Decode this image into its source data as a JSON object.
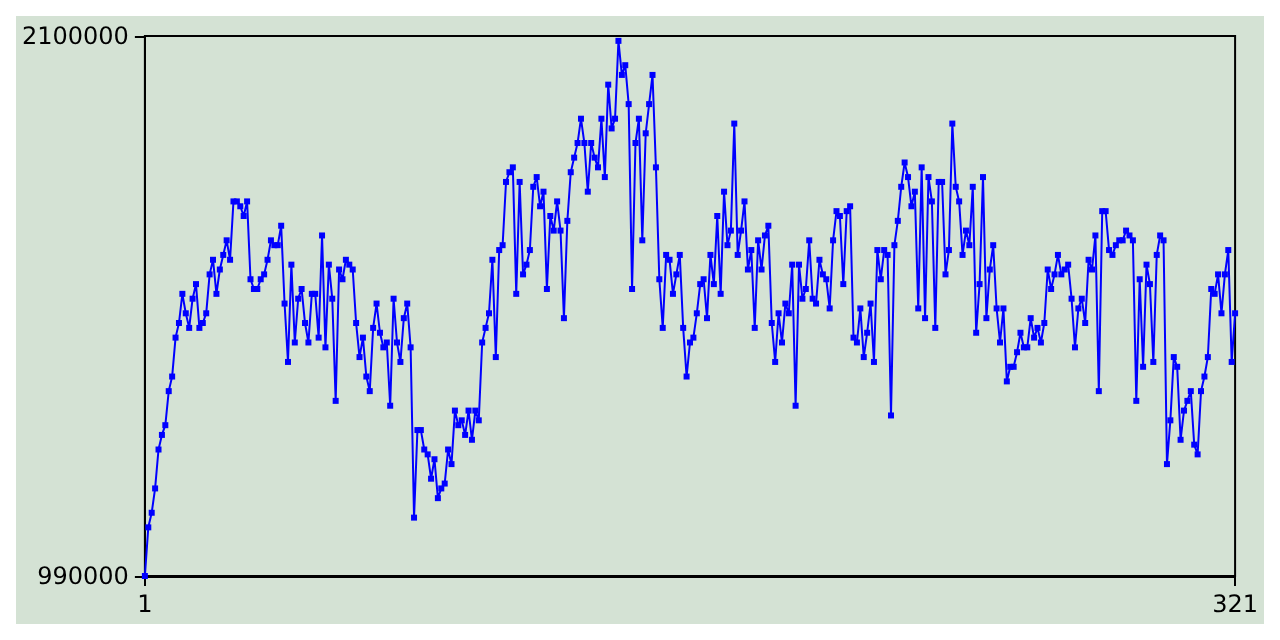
{
  "chart_data": {
    "type": "line",
    "xlim": [
      1,
      321
    ],
    "xticks": [
      1,
      321
    ],
    "ylim": [
      990000,
      2100000
    ],
    "yticks": [
      990000,
      2100000
    ],
    "grid": false,
    "marker": "square",
    "line_style": "solid",
    "series": [
      {
        "color": "#0000ff",
        "x": [
          1,
          2,
          3,
          4,
          5,
          6,
          7,
          8,
          9,
          10,
          11,
          12,
          13,
          14,
          15,
          16,
          17,
          18,
          19,
          20,
          21,
          22,
          23,
          24,
          25,
          26,
          27,
          28,
          29,
          30,
          31,
          32,
          33,
          34,
          35,
          36,
          37,
          38,
          39,
          40,
          41,
          42,
          43,
          44,
          45,
          46,
          47,
          48,
          49,
          50,
          51,
          52,
          53,
          54,
          55,
          56,
          57,
          58,
          59,
          60,
          61,
          62,
          63,
          64,
          65,
          66,
          67,
          68,
          69,
          70,
          71,
          72,
          73,
          74,
          75,
          76,
          77,
          78,
          79,
          80,
          81,
          82,
          83,
          84,
          85,
          86,
          87,
          88,
          89,
          90,
          91,
          92,
          93,
          94,
          95,
          96,
          97,
          98,
          99,
          100,
          101,
          102,
          103,
          104,
          105,
          106,
          107,
          108,
          109,
          110,
          111,
          112,
          113,
          114,
          115,
          116,
          117,
          118,
          119,
          120,
          121,
          122,
          123,
          124,
          125,
          126,
          127,
          128,
          129,
          130,
          131,
          132,
          133,
          134,
          135,
          136,
          137,
          138,
          139,
          140,
          141,
          142,
          143,
          144,
          145,
          146,
          147,
          148,
          149,
          150,
          151,
          152,
          153,
          154,
          155,
          156,
          157,
          158,
          159,
          160,
          161,
          162,
          163,
          164,
          165,
          166,
          167,
          168,
          169,
          170,
          171,
          172,
          173,
          174,
          175,
          176,
          177,
          178,
          179,
          180,
          181,
          182,
          183,
          184,
          185,
          186,
          187,
          188,
          189,
          190,
          191,
          192,
          193,
          194,
          195,
          196,
          197,
          198,
          199,
          200,
          201,
          202,
          203,
          204,
          205,
          206,
          207,
          208,
          209,
          210,
          211,
          212,
          213,
          214,
          215,
          216,
          217,
          218,
          219,
          220,
          221,
          222,
          223,
          224,
          225,
          226,
          227,
          228,
          229,
          230,
          231,
          232,
          233,
          234,
          235,
          236,
          237,
          238,
          239,
          240,
          241,
          242,
          243,
          244,
          245,
          246,
          247,
          248,
          249,
          250,
          251,
          252,
          253,
          254,
          255,
          256,
          257,
          258,
          259,
          260,
          261,
          262,
          263,
          264,
          265,
          266,
          267,
          268,
          269,
          270,
          271,
          272,
          273,
          274,
          275,
          276,
          277,
          278,
          279,
          280,
          281,
          282,
          283,
          284,
          285,
          286,
          287,
          288,
          289,
          290,
          291,
          292,
          293,
          294,
          295,
          296,
          297,
          298,
          299,
          300,
          301,
          302,
          303,
          304,
          305,
          306,
          307,
          308,
          309,
          310,
          311,
          312,
          313,
          314,
          315,
          316,
          317,
          318,
          319,
          320,
          321
        ],
        "values": [
          990000,
          1090000,
          1120000,
          1170000,
          1250000,
          1280000,
          1300000,
          1370000,
          1400000,
          1480000,
          1510000,
          1570000,
          1530000,
          1500000,
          1560000,
          1590000,
          1500000,
          1510000,
          1530000,
          1610000,
          1640000,
          1570000,
          1620000,
          1650000,
          1680000,
          1640000,
          1760000,
          1760000,
          1750000,
          1730000,
          1760000,
          1600000,
          1580000,
          1580000,
          1600000,
          1610000,
          1640000,
          1680000,
          1670000,
          1670000,
          1710000,
          1550000,
          1430000,
          1630000,
          1470000,
          1560000,
          1580000,
          1510000,
          1470000,
          1570000,
          1570000,
          1480000,
          1690000,
          1460000,
          1630000,
          1560000,
          1350000,
          1620000,
          1600000,
          1640000,
          1630000,
          1620000,
          1510000,
          1440000,
          1480000,
          1400000,
          1370000,
          1500000,
          1550000,
          1490000,
          1460000,
          1470000,
          1340000,
          1560000,
          1470000,
          1430000,
          1520000,
          1550000,
          1460000,
          1110000,
          1290000,
          1290000,
          1250000,
          1240000,
          1190000,
          1230000,
          1150000,
          1170000,
          1180000,
          1250000,
          1220000,
          1330000,
          1300000,
          1310000,
          1280000,
          1330000,
          1270000,
          1330000,
          1310000,
          1470000,
          1500000,
          1530000,
          1640000,
          1440000,
          1660000,
          1670000,
          1800000,
          1820000,
          1830000,
          1570000,
          1800000,
          1610000,
          1630000,
          1660000,
          1790000,
          1810000,
          1750000,
          1780000,
          1580000,
          1730000,
          1700000,
          1760000,
          1700000,
          1520000,
          1720000,
          1820000,
          1850000,
          1880000,
          1930000,
          1880000,
          1780000,
          1880000,
          1850000,
          1830000,
          1930000,
          1810000,
          2000000,
          1910000,
          1930000,
          2090000,
          2020000,
          2040000,
          1960000,
          1580000,
          1880000,
          1930000,
          1680000,
          1900000,
          1960000,
          2020000,
          1830000,
          1600000,
          1500000,
          1650000,
          1640000,
          1570000,
          1610000,
          1650000,
          1500000,
          1400000,
          1470000,
          1480000,
          1530000,
          1590000,
          1600000,
          1520000,
          1650000,
          1590000,
          1730000,
          1570000,
          1780000,
          1670000,
          1700000,
          1920000,
          1650000,
          1700000,
          1760000,
          1620000,
          1660000,
          1500000,
          1680000,
          1620000,
          1690000,
          1710000,
          1510000,
          1430000,
          1530000,
          1470000,
          1550000,
          1530000,
          1630000,
          1340000,
          1630000,
          1560000,
          1580000,
          1680000,
          1560000,
          1550000,
          1640000,
          1610000,
          1600000,
          1540000,
          1680000,
          1740000,
          1730000,
          1590000,
          1740000,
          1750000,
          1480000,
          1470000,
          1540000,
          1440000,
          1490000,
          1550000,
          1430000,
          1660000,
          1600000,
          1660000,
          1650000,
          1320000,
          1670000,
          1720000,
          1790000,
          1840000,
          1810000,
          1750000,
          1780000,
          1540000,
          1830000,
          1520000,
          1810000,
          1760000,
          1500000,
          1800000,
          1800000,
          1610000,
          1660000,
          1920000,
          1790000,
          1760000,
          1650000,
          1700000,
          1670000,
          1790000,
          1490000,
          1590000,
          1810000,
          1520000,
          1620000,
          1670000,
          1540000,
          1470000,
          1540000,
          1390000,
          1420000,
          1420000,
          1450000,
          1490000,
          1460000,
          1460000,
          1520000,
          1480000,
          1500000,
          1470000,
          1510000,
          1620000,
          1580000,
          1610000,
          1650000,
          1610000,
          1620000,
          1630000,
          1560000,
          1460000,
          1540000,
          1560000,
          1510000,
          1640000,
          1620000,
          1690000,
          1370000,
          1740000,
          1740000,
          1660000,
          1650000,
          1670000,
          1680000,
          1680000,
          1700000,
          1690000,
          1680000,
          1350000,
          1600000,
          1420000,
          1630000,
          1590000,
          1430000,
          1650000,
          1690000,
          1680000,
          1220000,
          1310000,
          1440000,
          1420000,
          1270000,
          1330000,
          1350000,
          1370000,
          1260000,
          1240000,
          1370000,
          1400000,
          1440000,
          1580000,
          1570000,
          1610000,
          1530000,
          1610000,
          1660000,
          1430000,
          1530000
        ]
      }
    ]
  }
}
